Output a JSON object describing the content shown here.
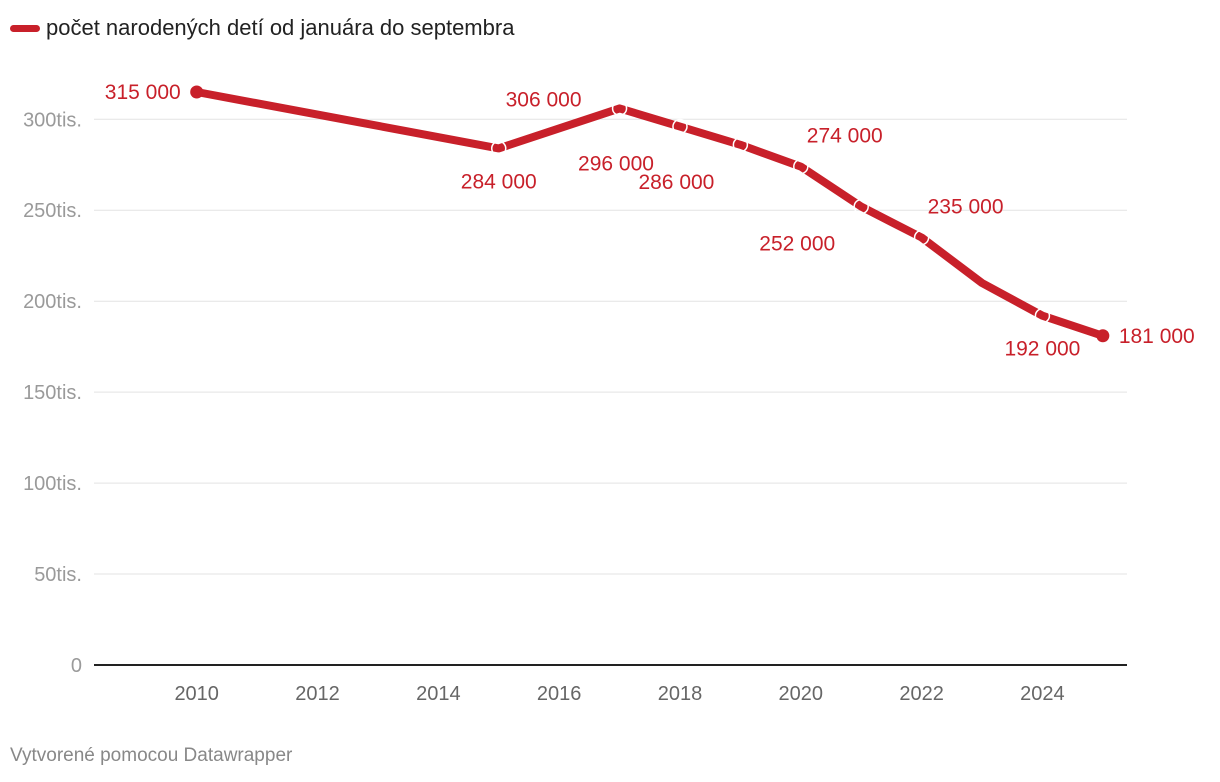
{
  "chart_data": {
    "type": "line",
    "title": "",
    "xlabel": "",
    "ylabel": "",
    "legend": {
      "label": "počet narodených detí od januára do septembra",
      "placement": "top-left"
    },
    "color": "#c8202a",
    "grid": true,
    "ylim": [
      0,
      315000
    ],
    "xlim": [
      2008.3,
      2025.4
    ],
    "y_ticks": [
      {
        "value": 0,
        "label": "0"
      },
      {
        "value": 50000,
        "label": "50tis."
      },
      {
        "value": 100000,
        "label": "100tis."
      },
      {
        "value": 150000,
        "label": "150tis."
      },
      {
        "value": 200000,
        "label": "200tis."
      },
      {
        "value": 250000,
        "label": "250tis."
      },
      {
        "value": 300000,
        "label": "300tis."
      }
    ],
    "x_ticks": [
      {
        "value": 2010,
        "label": "2010"
      },
      {
        "value": 2012,
        "label": "2012"
      },
      {
        "value": 2014,
        "label": "2014"
      },
      {
        "value": 2016,
        "label": "2016"
      },
      {
        "value": 2018,
        "label": "2018"
      },
      {
        "value": 2020,
        "label": "2020"
      },
      {
        "value": 2022,
        "label": "2022"
      },
      {
        "value": 2024,
        "label": "2024"
      }
    ],
    "series": [
      {
        "name": "počet narodených detí od januára do septembra",
        "points": [
          {
            "x": 2010,
            "y": 315000,
            "label": "315 000",
            "marker": "filled",
            "pos": "left"
          },
          {
            "x": 2015,
            "y": 284000,
            "label": "284 000",
            "marker": "open",
            "pos": "below"
          },
          {
            "x": 2017,
            "y": 306000,
            "label": "306 000",
            "marker": "open",
            "pos": "above-left"
          },
          {
            "x": 2018,
            "y": 296000,
            "label": "296 000",
            "marker": "open",
            "pos": "below-left"
          },
          {
            "x": 2019,
            "y": 286000,
            "label": "286 000",
            "marker": "open",
            "pos": "below-left"
          },
          {
            "x": 2020,
            "y": 274000,
            "label": "274 000",
            "marker": "open",
            "pos": "above"
          },
          {
            "x": 2021,
            "y": 252000,
            "label": "252 000",
            "marker": "open",
            "pos": "below-left"
          },
          {
            "x": 2022,
            "y": 235000,
            "label": "235 000",
            "marker": "open",
            "pos": "above"
          },
          {
            "x": 2023,
            "y": 210000,
            "label": null,
            "marker": "none",
            "pos": ""
          },
          {
            "x": 2024,
            "y": 192000,
            "label": "192 000",
            "marker": "open",
            "pos": "below"
          },
          {
            "x": 2025,
            "y": 181000,
            "label": "181 000",
            "marker": "filled",
            "pos": "right"
          }
        ]
      }
    ]
  },
  "footer": {
    "credit": "Vytvorené pomocou Datawrapper"
  }
}
